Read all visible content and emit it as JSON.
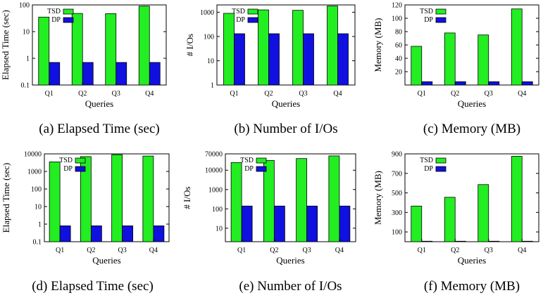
{
  "colors": {
    "tsd": "#22ee22",
    "dp": "#1010e0",
    "axis": "#000000"
  },
  "chart_data": [
    {
      "type": "bar",
      "scale": "log",
      "categories": [
        "Q1",
        "Q2",
        "Q3",
        "Q4"
      ],
      "series": [
        {
          "name": "TSD",
          "values": [
            35,
            48,
            47,
            90
          ]
        },
        {
          "name": "DP",
          "values": [
            0.7,
            0.7,
            0.7,
            0.7
          ]
        }
      ],
      "xlabel": "Queries",
      "ylabel": "Elapsed Time (sec)",
      "ylim": [
        0.1,
        100
      ],
      "ticks": [
        0.1,
        1,
        10,
        100
      ],
      "tick_labels": [
        "0.1",
        "1",
        "10",
        "100"
      ],
      "legend": "top-left",
      "caption": "(a) Elapsed Time (sec)"
    },
    {
      "type": "bar",
      "scale": "log",
      "categories": [
        "Q1",
        "Q2",
        "Q3",
        "Q4"
      ],
      "series": [
        {
          "name": "TSD",
          "values": [
            900,
            1250,
            1200,
            1800
          ]
        },
        {
          "name": "DP",
          "values": [
            130,
            130,
            130,
            130
          ]
        }
      ],
      "xlabel": "Queries",
      "ylabel": "# I/Os",
      "ylim": [
        1,
        2000
      ],
      "ticks": [
        1,
        10,
        100,
        1000
      ],
      "tick_labels": [
        "1",
        "10",
        "100",
        "1000"
      ],
      "legend": "top-left",
      "caption": "(b) Number of I/Os"
    },
    {
      "type": "bar",
      "scale": "linear",
      "categories": [
        "Q1",
        "Q2",
        "Q3",
        "Q4"
      ],
      "series": [
        {
          "name": "TSD",
          "values": [
            58,
            78,
            75,
            114
          ]
        },
        {
          "name": "DP",
          "values": [
            5,
            5,
            5,
            5
          ]
        }
      ],
      "xlabel": "Queries",
      "ylabel": "Memory (MB)",
      "ylim": [
        0,
        120
      ],
      "ticks": [
        20,
        40,
        60,
        80,
        100,
        120
      ],
      "tick_labels": [
        "20",
        "40",
        "60",
        "80",
        "100",
        "120"
      ],
      "legend": "top-left",
      "caption": "(c) Memory (MB)"
    },
    {
      "type": "bar",
      "scale": "log",
      "categories": [
        "Q1",
        "Q2",
        "Q3",
        "Q4"
      ],
      "series": [
        {
          "name": "TSD",
          "values": [
            3500,
            7000,
            9000,
            7500
          ]
        },
        {
          "name": "DP",
          "values": [
            0.8,
            0.8,
            0.8,
            0.8
          ]
        }
      ],
      "xlabel": "Queries",
      "ylabel": "Elapsed Time (sec)",
      "ylim": [
        0.1,
        10000
      ],
      "ticks": [
        0.1,
        1,
        10,
        100,
        1000,
        10000
      ],
      "tick_labels": [
        "0.1",
        "1",
        "10",
        "100",
        "1000",
        "10000"
      ],
      "legend": "top-left",
      "caption": "(d) Elapsed Time (sec)"
    },
    {
      "type": "bar",
      "scale": "log",
      "categories": [
        "Q1",
        "Q2",
        "Q3",
        "Q4"
      ],
      "series": [
        {
          "name": "TSD",
          "values": [
            25000,
            32000,
            40000,
            55000
          ]
        },
        {
          "name": "DP",
          "values": [
            140,
            140,
            140,
            140
          ]
        }
      ],
      "xlabel": "Queries",
      "ylabel": "# I/Os",
      "ylim": [
        2,
        70000
      ],
      "ticks": [
        10,
        100,
        1000,
        10000,
        70000
      ],
      "tick_labels": [
        "10",
        "100",
        "1000",
        "10000",
        "70000"
      ],
      "legend": "top-left",
      "caption": "(e) Number of I/Os"
    },
    {
      "type": "bar",
      "scale": "linear",
      "categories": [
        "Q1",
        "Q2",
        "Q3",
        "Q4"
      ],
      "series": [
        {
          "name": "TSD",
          "values": [
            365,
            455,
            585,
            875
          ]
        },
        {
          "name": "DP",
          "values": [
            5,
            5,
            5,
            5
          ]
        }
      ],
      "xlabel": "Queries",
      "ylabel": "Memory (MB)",
      "ylim": [
        0,
        900
      ],
      "ticks": [
        100,
        300,
        500,
        700,
        900
      ],
      "tick_labels": [
        "100",
        "300",
        "500",
        "700",
        "900"
      ],
      "legend": "top-left",
      "caption": "(f) Memory (MB)"
    }
  ]
}
